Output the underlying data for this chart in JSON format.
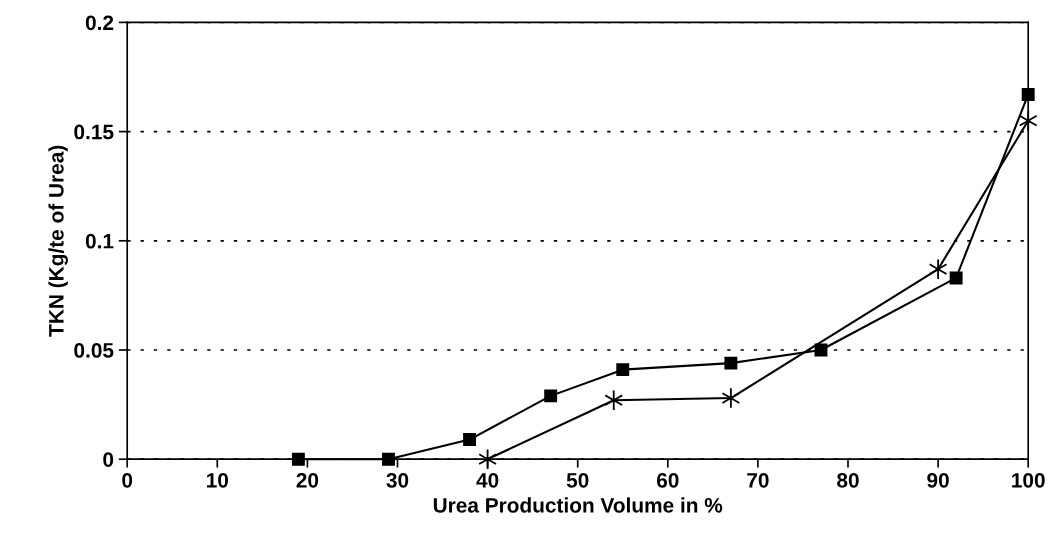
{
  "chart_data": {
    "type": "line",
    "xlabel": "Urea Production Volume in %",
    "ylabel": "TKN (Kg/te of Urea)",
    "xlim": [
      0,
      100
    ],
    "xticks": [
      0,
      10,
      20,
      30,
      40,
      50,
      60,
      70,
      80,
      90,
      100
    ],
    "ylim": [
      0,
      0.2
    ],
    "yticks": [
      0,
      0.05,
      0.1,
      0.15,
      0.2
    ],
    "grid": "y",
    "line_style": "solid",
    "series": [
      {
        "color": "#000000",
        "marker": "square",
        "x": [
          19,
          29,
          38,
          47,
          55,
          67,
          77,
          92,
          100
        ],
        "values": [
          0,
          0,
          0.009,
          0.029,
          0.041,
          0.044,
          0.05,
          0.083,
          0.167
        ]
      },
      {
        "color": "#000000",
        "marker": "cross",
        "x": [
          40,
          54,
          67,
          90,
          100
        ],
        "values": [
          0,
          0.027,
          0.028,
          0.087,
          0.155
        ]
      }
    ]
  }
}
